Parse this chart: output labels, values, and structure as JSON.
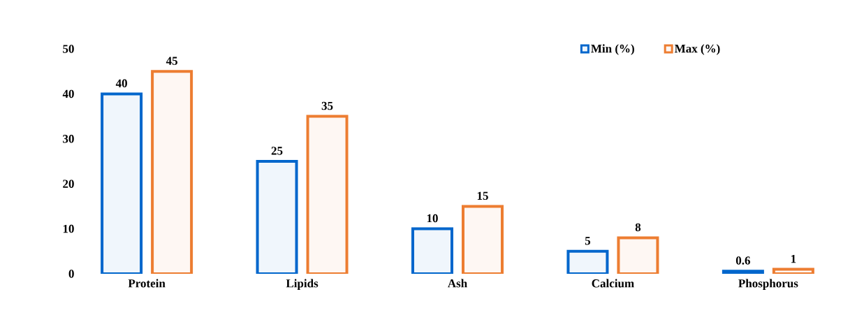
{
  "chart_data": {
    "type": "bar",
    "categories": [
      "Protein",
      "Lipids",
      "Ash",
      "Calcium",
      "Phosphorus"
    ],
    "series": [
      {
        "name": "Min (%)",
        "color": "#0066cc",
        "values": [
          40,
          25,
          10,
          5,
          0.6
        ]
      },
      {
        "name": "Max (%)",
        "color": "#ed7d31",
        "values": [
          45,
          35,
          15,
          8,
          1
        ]
      }
    ],
    "ylim": [
      0,
      50
    ],
    "yticks": [
      0,
      10,
      20,
      30,
      40,
      50
    ],
    "data_labels": true,
    "legend": "top right"
  }
}
